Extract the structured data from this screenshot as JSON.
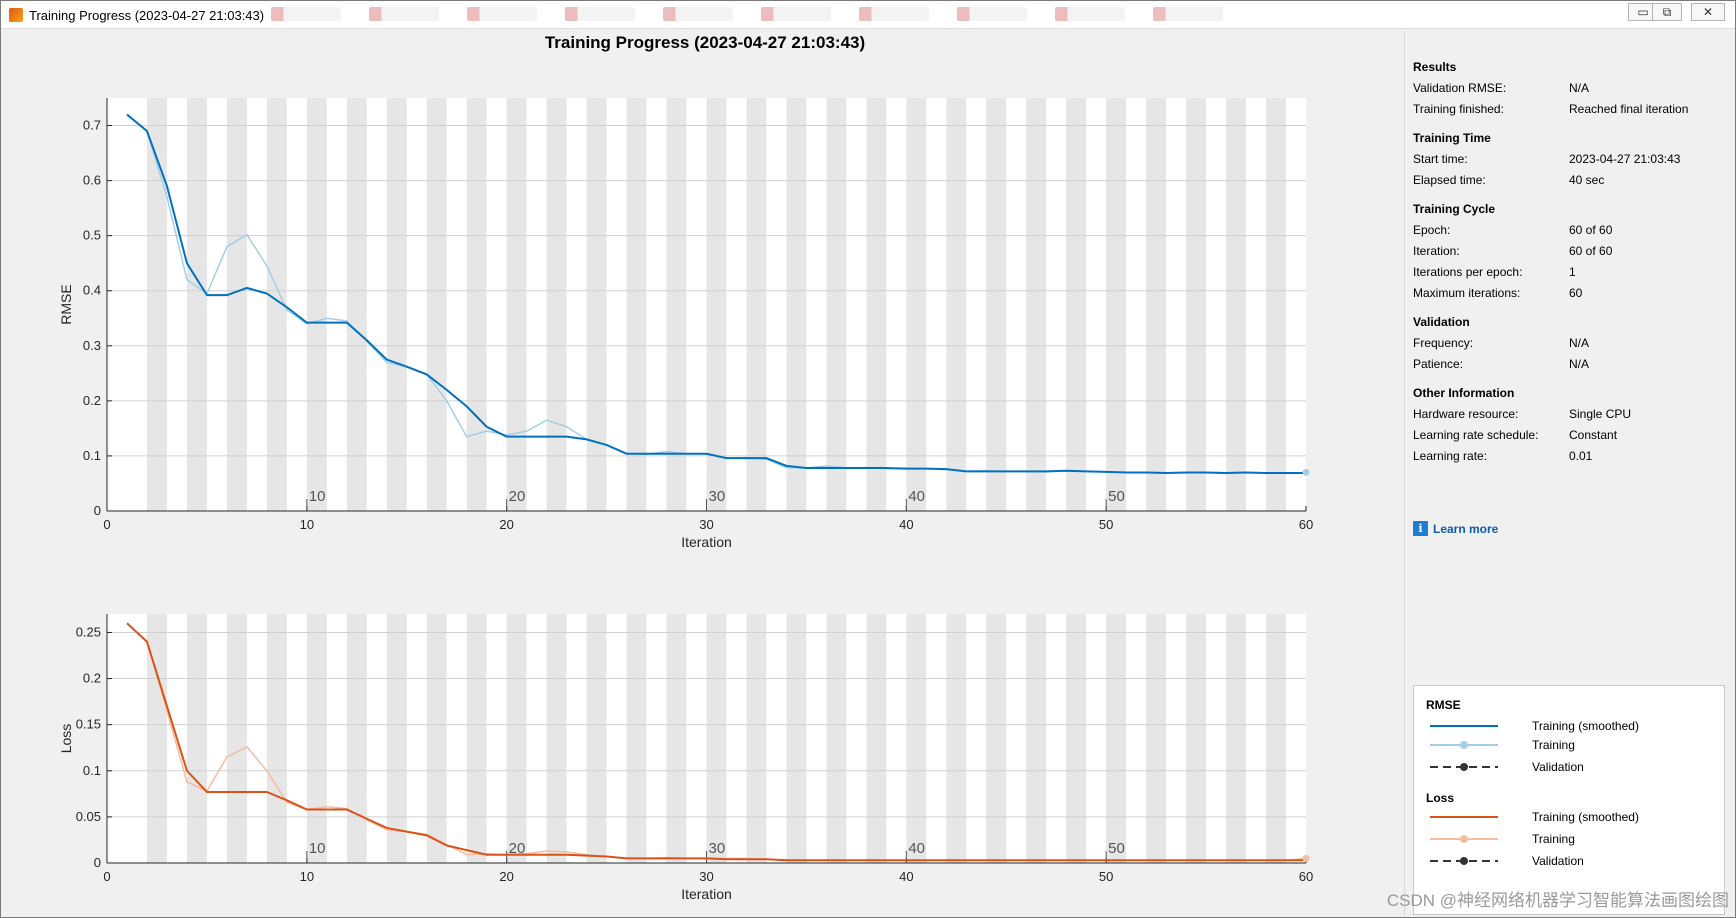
{
  "window": {
    "title": "Training Progress (2023-04-27 21:03:43)",
    "controls": {
      "minimize": "▭",
      "maximize": "⧉",
      "close": "✕"
    }
  },
  "main_title": "Training Progress (2023-04-27 21:03:43)",
  "info_panel": {
    "sections": [
      {
        "title": "Results",
        "rows": [
          {
            "key": "Validation RMSE:",
            "value": "N/A"
          },
          {
            "key": "Training finished:",
            "value": "Reached final iteration"
          }
        ]
      },
      {
        "title": "Training Time",
        "rows": [
          {
            "key": "Start time:",
            "value": "2023-04-27 21:03:43"
          },
          {
            "key": "Elapsed time:",
            "value": "40 sec"
          }
        ]
      },
      {
        "title": "Training Cycle",
        "rows": [
          {
            "key": "Epoch:",
            "value": "60 of 60"
          },
          {
            "key": "Iteration:",
            "value": "60 of 60"
          },
          {
            "key": "Iterations per epoch:",
            "value": "1"
          },
          {
            "key": "Maximum iterations:",
            "value": "60"
          }
        ]
      },
      {
        "title": "Validation",
        "rows": [
          {
            "key": "Frequency:",
            "value": "N/A"
          },
          {
            "key": "Patience:",
            "value": "N/A"
          }
        ]
      },
      {
        "title": "Other Information",
        "rows": [
          {
            "key": "Hardware resource:",
            "value": "Single CPU"
          },
          {
            "key": "Learning rate schedule:",
            "value": "Constant"
          },
          {
            "key": "Learning rate:",
            "value": "0.01"
          }
        ]
      }
    ],
    "learn_more": "Learn more",
    "learn_more_icon": "info-icon"
  },
  "legend": {
    "groups": [
      {
        "title": "RMSE",
        "items": [
          {
            "label": "Training (smoothed)",
            "style": "solid",
            "color": "#0072bd"
          },
          {
            "label": "Training",
            "style": "marker",
            "color": "#a6cde8"
          },
          {
            "label": "Validation",
            "style": "dashed",
            "color": "#333333"
          }
        ]
      },
      {
        "title": "Loss",
        "items": [
          {
            "label": "Training (smoothed)",
            "style": "solid",
            "color": "#d95319"
          },
          {
            "label": "Training",
            "style": "marker",
            "color": "#f4bca0"
          },
          {
            "label": "Validation",
            "style": "dashed",
            "color": "#333333"
          }
        ]
      }
    ]
  },
  "watermark": "CSDN @神经网络机器学习智能算法画图绘图",
  "chart_data": [
    {
      "type": "line",
      "ylabel": "RMSE",
      "xlabel": "Iteration",
      "xlim": [
        0,
        60
      ],
      "ylim": [
        0,
        0.75
      ],
      "xticks": [
        "0",
        "10",
        "20",
        "30",
        "40",
        "50",
        "60"
      ],
      "yticks": [
        "0",
        "0.1",
        "0.2",
        "0.3",
        "0.4",
        "0.5",
        "0.6",
        "0.7"
      ],
      "epoch_labels": [
        "10",
        "20",
        "30",
        "40",
        "50"
      ],
      "colors": {
        "smoothed": "#0072bd",
        "raw": "#a6cde8"
      },
      "x": [
        1,
        2,
        3,
        4,
        5,
        6,
        7,
        8,
        9,
        10,
        11,
        12,
        13,
        14,
        15,
        16,
        17,
        18,
        19,
        20,
        21,
        22,
        23,
        24,
        25,
        26,
        27,
        28,
        29,
        30,
        31,
        32,
        33,
        34,
        35,
        36,
        37,
        38,
        39,
        40,
        41,
        42,
        43,
        44,
        45,
        46,
        47,
        48,
        49,
        50,
        51,
        52,
        53,
        54,
        55,
        56,
        57,
        58,
        59,
        60
      ],
      "series": [
        {
          "name": "Training (smoothed)",
          "values": [
            0.72,
            0.69,
            0.59,
            0.45,
            0.392,
            0.392,
            0.405,
            0.395,
            0.37,
            0.342,
            0.342,
            0.342,
            0.31,
            0.275,
            0.262,
            0.248,
            0.22,
            0.19,
            0.153,
            0.135,
            0.135,
            0.135,
            0.135,
            0.13,
            0.12,
            0.104,
            0.104,
            0.104,
            0.104,
            0.104,
            0.096,
            0.096,
            0.096,
            0.082,
            0.078,
            0.078,
            0.078,
            0.078,
            0.078,
            0.077,
            0.077,
            0.076,
            0.072,
            0.072,
            0.072,
            0.072,
            0.072,
            0.073,
            0.072,
            0.071,
            0.07,
            0.07,
            0.069,
            0.07,
            0.07,
            0.069,
            0.07,
            0.069,
            0.069,
            0.069
          ]
        },
        {
          "name": "Training",
          "values": [
            0.72,
            0.69,
            0.57,
            0.42,
            0.395,
            0.48,
            0.502,
            0.445,
            0.365,
            0.34,
            0.35,
            0.345,
            0.308,
            0.27,
            0.262,
            0.248,
            0.2,
            0.135,
            0.145,
            0.138,
            0.145,
            0.165,
            0.153,
            0.13,
            0.12,
            0.105,
            0.103,
            0.108,
            0.104,
            0.104,
            0.096,
            0.097,
            0.094,
            0.079,
            0.078,
            0.082,
            0.078,
            0.079,
            0.077,
            0.077,
            0.077,
            0.075,
            0.072,
            0.073,
            0.072,
            0.072,
            0.071,
            0.073,
            0.072,
            0.071,
            0.07,
            0.07,
            0.069,
            0.07,
            0.07,
            0.068,
            0.07,
            0.069,
            0.069,
            0.07
          ]
        }
      ]
    },
    {
      "type": "line",
      "ylabel": "Loss",
      "xlabel": "Iteration",
      "xlim": [
        0,
        60
      ],
      "ylim": [
        0,
        0.27
      ],
      "xticks": [
        "0",
        "10",
        "20",
        "30",
        "40",
        "50",
        "60"
      ],
      "yticks": [
        "0",
        "0.05",
        "0.1",
        "0.15",
        "0.2",
        "0.25"
      ],
      "epoch_labels": [
        "10",
        "20",
        "30",
        "40",
        "50"
      ],
      "colors": {
        "smoothed": "#d95319",
        "raw": "#f4bca0"
      },
      "x": [
        1,
        2,
        3,
        4,
        5,
        6,
        7,
        8,
        9,
        10,
        11,
        12,
        13,
        14,
        15,
        16,
        17,
        18,
        19,
        20,
        21,
        22,
        23,
        24,
        25,
        26,
        27,
        28,
        29,
        30,
        31,
        32,
        33,
        34,
        35,
        36,
        37,
        38,
        39,
        40,
        41,
        42,
        43,
        44,
        45,
        46,
        47,
        48,
        49,
        50,
        51,
        52,
        53,
        54,
        55,
        56,
        57,
        58,
        59,
        60
      ],
      "series": [
        {
          "name": "Training (smoothed)",
          "values": [
            0.26,
            0.24,
            0.17,
            0.1,
            0.077,
            0.077,
            0.077,
            0.077,
            0.068,
            0.058,
            0.058,
            0.058,
            0.048,
            0.038,
            0.034,
            0.03,
            0.019,
            0.014,
            0.009,
            0.009,
            0.009,
            0.009,
            0.009,
            0.008,
            0.007,
            0.005,
            0.005,
            0.005,
            0.005,
            0.005,
            0.004,
            0.004,
            0.004,
            0.003,
            0.003,
            0.003,
            0.003,
            0.003,
            0.003,
            0.003,
            0.003,
            0.003,
            0.003,
            0.003,
            0.003,
            0.003,
            0.003,
            0.003,
            0.003,
            0.003,
            0.003,
            0.003,
            0.003,
            0.003,
            0.003,
            0.003,
            0.003,
            0.003,
            0.003,
            0.003
          ]
        },
        {
          "name": "Training",
          "values": [
            0.26,
            0.24,
            0.165,
            0.088,
            0.078,
            0.115,
            0.126,
            0.1,
            0.066,
            0.058,
            0.061,
            0.059,
            0.047,
            0.036,
            0.034,
            0.031,
            0.02,
            0.009,
            0.01,
            0.009,
            0.01,
            0.013,
            0.012,
            0.009,
            0.007,
            0.005,
            0.005,
            0.006,
            0.005,
            0.005,
            0.005,
            0.005,
            0.004,
            0.003,
            0.003,
            0.003,
            0.003,
            0.003,
            0.003,
            0.003,
            0.003,
            0.003,
            0.003,
            0.003,
            0.003,
            0.003,
            0.003,
            0.003,
            0.003,
            0.003,
            0.003,
            0.003,
            0.003,
            0.003,
            0.003,
            0.003,
            0.003,
            0.003,
            0.003,
            0.005
          ]
        }
      ]
    }
  ]
}
